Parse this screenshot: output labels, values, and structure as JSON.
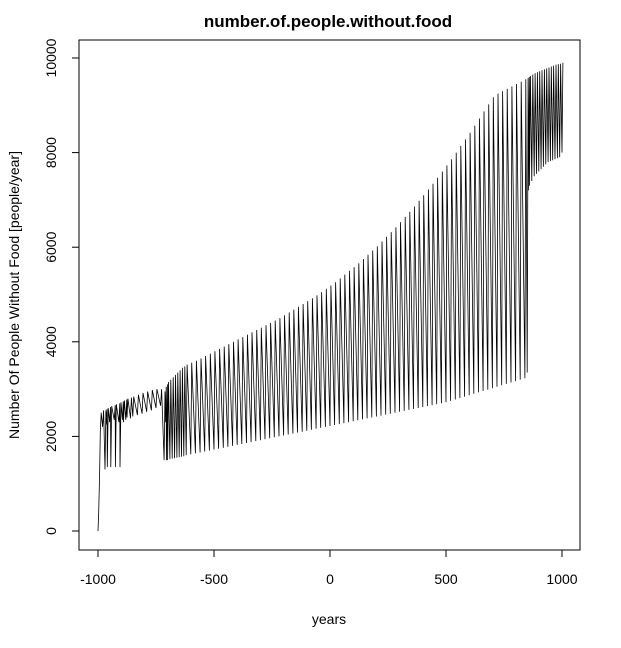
{
  "chart_data": {
    "type": "line",
    "title": "number.of.people.without.food",
    "xlabel": "years",
    "ylabel": "Number Of People Without Food [people/year]",
    "xlim": [
      -1000,
      1000
    ],
    "ylim": [
      0,
      10000
    ],
    "xticks": [
      -1000,
      -500,
      0,
      500,
      1000
    ],
    "xtick_labels": [
      "-1000",
      "-500",
      "0",
      "500",
      "1000"
    ],
    "yticks": [
      0,
      2000,
      4000,
      6000,
      8000,
      10000
    ],
    "ytick_labels": [
      "0",
      "2000",
      "4000",
      "6000",
      "8000",
      "10000"
    ],
    "grid": false,
    "legend": "none",
    "line_color": "#000000",
    "series": [
      {
        "x": [
          -1000,
          -997,
          -990,
          -980,
          -970,
          -965,
          -960,
          -950,
          -945,
          -930,
          -925,
          -910,
          -905,
          -895,
          -890,
          -880,
          -875,
          -860,
          -850,
          -830,
          -810,
          -790,
          -770,
          -750,
          -730,
          -715,
          -710,
          -705,
          -700,
          -690,
          -680,
          -670,
          -660,
          -650,
          -640,
          -630,
          -620,
          -600,
          -580,
          -560,
          -540,
          -520,
          -500,
          -480,
          -460,
          -440,
          -420,
          -400,
          -380,
          -360,
          -340,
          -320,
          -300,
          -280,
          -260,
          -240,
          -220,
          -200,
          -180,
          -160,
          -140,
          -120,
          -100,
          -80,
          -60,
          -40,
          -20,
          0,
          20,
          40,
          60,
          80,
          100,
          120,
          140,
          160,
          180,
          200,
          220,
          240,
          260,
          280,
          300,
          320,
          340,
          360,
          380,
          400,
          420,
          440,
          460,
          480,
          500,
          520,
          540,
          560,
          580,
          600,
          620,
          640,
          660,
          680,
          700,
          720,
          740,
          760,
          780,
          800,
          820,
          840,
          850,
          855,
          860,
          870,
          880,
          890,
          900,
          910,
          920,
          930,
          940,
          950,
          960,
          970,
          980,
          990,
          1000
        ],
        "lower": [
          0,
          400,
          2100,
          2200,
          1300,
          2250,
          1350,
          2300,
          1350,
          2350,
          1350,
          2300,
          1350,
          2350,
          2300,
          2350,
          2400,
          2380,
          2420,
          2450,
          2480,
          2520,
          2550,
          2600,
          2650,
          1500,
          2300,
          1500,
          1500,
          1520,
          1530,
          1540,
          1550,
          1560,
          1570,
          1580,
          1600,
          1620,
          1640,
          1660,
          1680,
          1700,
          1720,
          1740,
          1760,
          1780,
          1800,
          1820,
          1840,
          1860,
          1880,
          1900,
          1920,
          1940,
          1960,
          1980,
          2000,
          2020,
          2040,
          2060,
          2080,
          2100,
          2120,
          2140,
          2160,
          2180,
          2200,
          2220,
          2240,
          2260,
          2280,
          2300,
          2320,
          2340,
          2360,
          2380,
          2400,
          2420,
          2440,
          2460,
          2480,
          2500,
          2520,
          2540,
          2560,
          2580,
          2600,
          2620,
          2640,
          2660,
          2680,
          2700,
          2720,
          2750,
          2780,
          2810,
          2840,
          2870,
          2900,
          2930,
          2960,
          2990,
          3020,
          3050,
          3080,
          3110,
          3140,
          3170,
          3200,
          3230,
          3350,
          7200,
          7300,
          7400,
          7500,
          7550,
          7600,
          7650,
          7700,
          7750,
          7800,
          7820,
          7840,
          7860,
          7880,
          7900,
          8000
        ],
        "upper": [
          0,
          1200,
          2500,
          2550,
          2550,
          2580,
          2600,
          2620,
          2640,
          2660,
          2680,
          2700,
          2720,
          2740,
          2760,
          2780,
          2800,
          2820,
          2840,
          2880,
          2920,
          2950,
          2980,
          3000,
          3000,
          2950,
          3050,
          3100,
          3150,
          3200,
          3250,
          3300,
          3350,
          3400,
          3450,
          3480,
          3520,
          3560,
          3600,
          3650,
          3700,
          3750,
          3800,
          3850,
          3900,
          3950,
          4000,
          4050,
          4100,
          4150,
          4200,
          4250,
          4300,
          4350,
          4400,
          4450,
          4500,
          4560,
          4620,
          4680,
          4740,
          4800,
          4860,
          4920,
          4980,
          5050,
          5120,
          5190,
          5260,
          5340,
          5420,
          5500,
          5580,
          5660,
          5750,
          5840,
          5930,
          6020,
          6120,
          6220,
          6320,
          6420,
          6530,
          6640,
          6750,
          6860,
          6980,
          7100,
          7220,
          7340,
          7470,
          7600,
          7730,
          7860,
          8000,
          8140,
          8280,
          8420,
          8570,
          8720,
          8870,
          9020,
          9170,
          9250,
          9300,
          9350,
          9400,
          9450,
          9500,
          9550,
          9580,
          9600,
          9620,
          9650,
          9680,
          9700,
          9720,
          9740,
          9760,
          9780,
          9800,
          9820,
          9840,
          9860,
          9870,
          9880,
          9900
        ]
      }
    ]
  }
}
